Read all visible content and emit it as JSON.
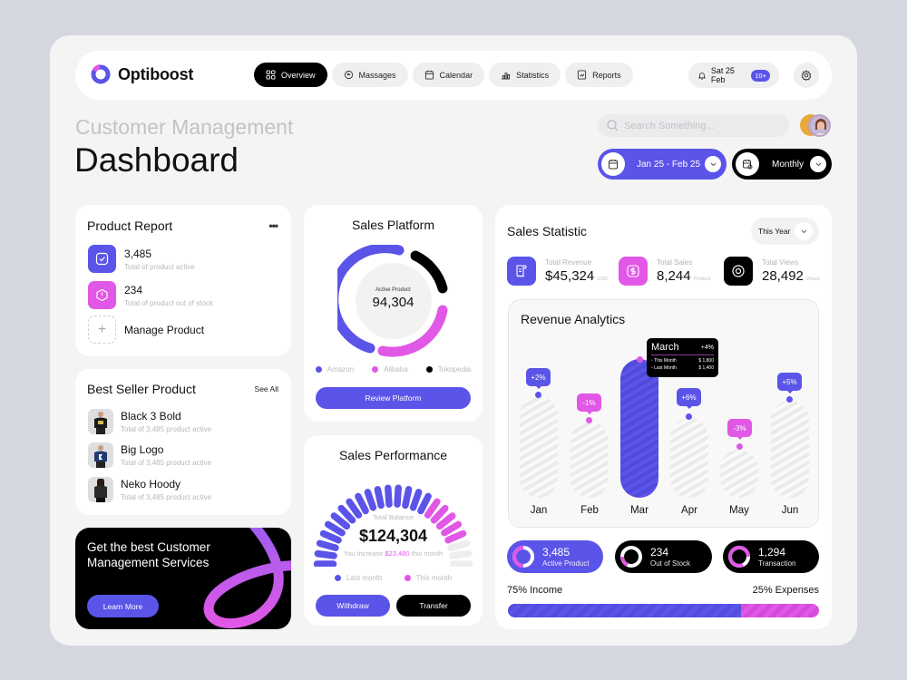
{
  "app": {
    "name": "Optiboost"
  },
  "nav": {
    "items": [
      {
        "label": "Overview",
        "icon": "grid-icon",
        "active": true
      },
      {
        "label": "Massages",
        "icon": "chat-icon",
        "active": false
      },
      {
        "label": "Calendar",
        "icon": "calendar-icon",
        "active": false
      },
      {
        "label": "Statistics",
        "icon": "chart-icon",
        "active": false
      },
      {
        "label": "Reports",
        "icon": "report-icon",
        "active": false
      }
    ],
    "date": "Sat 25 Feb",
    "notification_badge": "10+"
  },
  "header": {
    "subtitle": "Customer Management",
    "title": "Dashboard",
    "search_placeholder": "Search Something...",
    "date_range": "Jan 25 - Feb 25",
    "period": "Monthly"
  },
  "product_report": {
    "title": "Product Report",
    "items": [
      {
        "value": "3,485",
        "label": "Total of product active",
        "color": "#5b54e8"
      },
      {
        "value": "234",
        "label": "Total of product out of stock",
        "color": "#e157e6"
      }
    ],
    "manage_label": "Manage Product"
  },
  "best_seller": {
    "title": "Best Seller Product",
    "see_all": "See All",
    "items": [
      {
        "name": "Black 3 Bold",
        "sub": "Total of 3,485 product active"
      },
      {
        "name": "Big Logo",
        "sub": "Total of 3,485 product active"
      },
      {
        "name": "Neko Hoody",
        "sub": "Total of 3,485 product active"
      }
    ]
  },
  "promo": {
    "text": "Get the best Customer Management Services",
    "button": "Learn More"
  },
  "sales_platform": {
    "title": "Sales Platform",
    "center_label": "Active Product",
    "center_value": "94,304",
    "legend": [
      {
        "label": "Amazon",
        "color": "#5b54e8"
      },
      {
        "label": "Alibaba",
        "color": "#e157e6"
      },
      {
        "label": "Tokopedia",
        "color": "#000000"
      }
    ],
    "button": "Review Platform"
  },
  "sales_performance": {
    "title": "Sales Performance",
    "balance_label": "Total Balance",
    "balance": "$124,304",
    "increase_prefix": "You Increase",
    "increase_value": "$23,480",
    "increase_suffix": "this month",
    "legend": [
      {
        "label": "Last month",
        "color": "#5b54e8"
      },
      {
        "label": "This month",
        "color": "#e157e6"
      }
    ],
    "withdraw": "Withdraw",
    "transfer": "Transfer"
  },
  "sales_statistic": {
    "title": "Sales Statistic",
    "filter": "This Year",
    "stats": [
      {
        "label": "Total Revenue",
        "value": "$45,324",
        "unit": "USD",
        "color": "#5b54e8"
      },
      {
        "label": "Total Sales",
        "value": "8,244",
        "unit": "Product",
        "color": "#e157e6"
      },
      {
        "label": "Total Views",
        "value": "28,492",
        "unit": "Views",
        "color": "#000000"
      }
    ]
  },
  "revenue_analytics": {
    "title": "Revenue Analytics",
    "bars": [
      {
        "month": "Jan",
        "change": "+2%",
        "positive": true
      },
      {
        "month": "Feb",
        "change": "-1%",
        "positive": false
      },
      {
        "month": "Mar",
        "change": "+4%",
        "positive": true,
        "active": true
      },
      {
        "month": "Apr",
        "change": "+6%",
        "positive": true
      },
      {
        "month": "May",
        "change": "-3%",
        "positive": false
      },
      {
        "month": "Jun",
        "change": "+5%",
        "positive": true
      }
    ],
    "tooltip": {
      "month": "March",
      "change": "+4%",
      "rows": [
        {
          "label": "This Month",
          "value": "$ 1,800"
        },
        {
          "label": "Last Month",
          "value": "$ 1,400"
        }
      ]
    }
  },
  "summary_pills": [
    {
      "value": "3,485",
      "label": "Active Product"
    },
    {
      "value": "234",
      "label": "Out of Stock"
    },
    {
      "value": "1,294",
      "label": "Transaction"
    }
  ],
  "income_expense": {
    "income_label": "75% Income",
    "expense_label": "25% Expenses",
    "income_pct": 75,
    "expense_pct": 25
  },
  "colors": {
    "primary": "#5b54e8",
    "accent": "#e157e6",
    "dark": "#000000",
    "bg": "#f4f4f5"
  }
}
